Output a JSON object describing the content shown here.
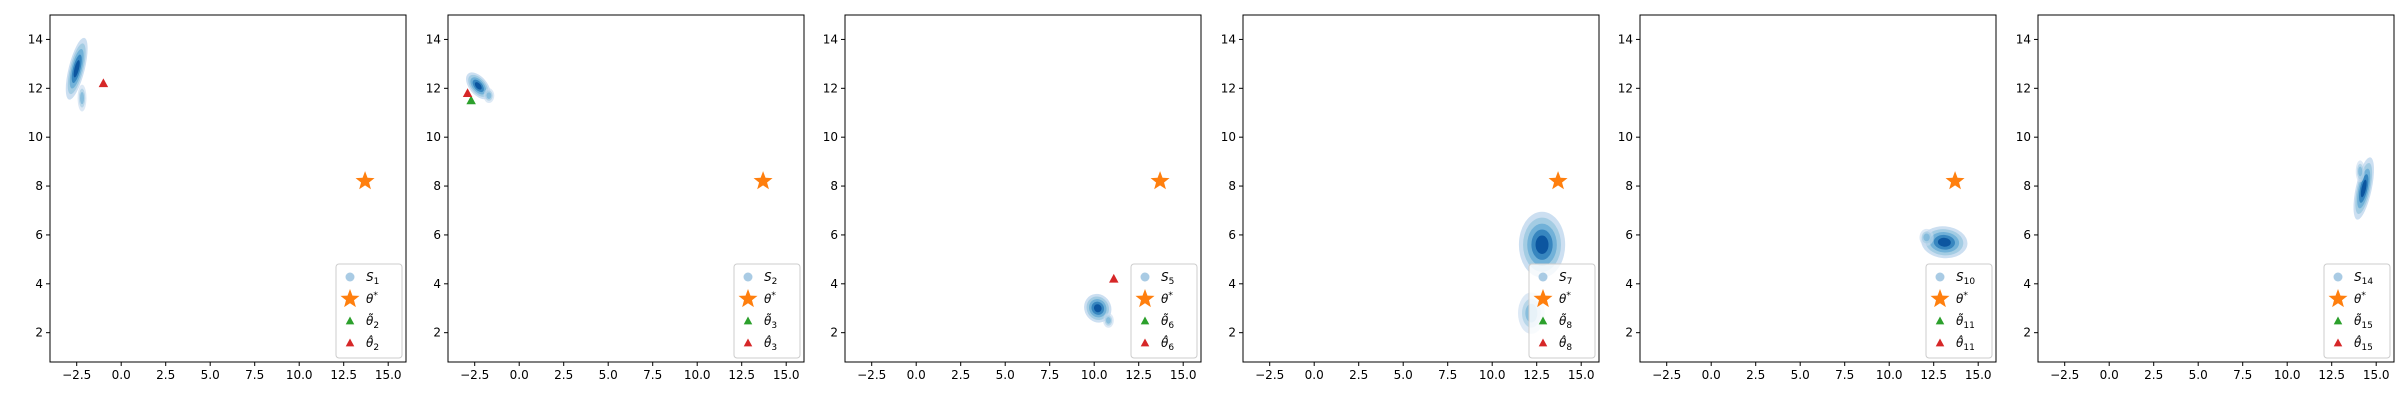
{
  "colors": {
    "star": "#ff7f0e",
    "green": "#2ca02c",
    "red": "#d62728",
    "kde": [
      "#c6dbef",
      "#9ecae1",
      "#6baed6",
      "#3182bd",
      "#08519c"
    ],
    "legend_s": "#a9cbe4"
  },
  "chart_data": [
    {
      "type": "scatter",
      "xlim": [
        -4.0,
        16.0
      ],
      "ylim": [
        0.8,
        15.0
      ],
      "xticks": [
        -2.5,
        0.0,
        2.5,
        5.0,
        7.5,
        10.0,
        12.5,
        15.0
      ],
      "yticks": [
        2,
        4,
        6,
        8,
        10,
        12,
        14
      ],
      "xtick_labels": [
        "−2.5",
        "0.0",
        "2.5",
        "5.0",
        "7.5",
        "10.0",
        "12.5",
        "15.0"
      ],
      "ytick_labels": [
        "2",
        "4",
        "6",
        "8",
        "10",
        "12",
        "14"
      ],
      "legend": {
        "position": "lower right",
        "entries": [
          {
            "marker": "dot",
            "base": "S",
            "sub": "1"
          },
          {
            "marker": "star",
            "base": "θ",
            "sup": "*"
          },
          {
            "marker": "green-triangle",
            "base": "θ̃",
            "sub": "2"
          },
          {
            "marker": "red-triangle",
            "base": "θ̂",
            "sub": "2"
          }
        ]
      },
      "star": {
        "x": 13.7,
        "y": 8.2
      },
      "green_triangle": null,
      "red_triangle": {
        "x": -1.0,
        "y": 12.2
      },
      "density": [
        {
          "x": -2.5,
          "y": 12.8,
          "sx": 0.45,
          "sy": 1.3,
          "angle": 14
        },
        {
          "x": -2.2,
          "y": 11.6,
          "sx": 0.25,
          "sy": 0.55,
          "angle": 0
        }
      ]
    },
    {
      "type": "scatter",
      "xlim": [
        -4.0,
        16.0
      ],
      "ylim": [
        0.8,
        15.0
      ],
      "xticks": [
        -2.5,
        0.0,
        2.5,
        5.0,
        7.5,
        10.0,
        12.5,
        15.0
      ],
      "yticks": [
        2,
        4,
        6,
        8,
        10,
        12,
        14
      ],
      "xtick_labels": [
        "−2.5",
        "0.0",
        "2.5",
        "5.0",
        "7.5",
        "10.0",
        "12.5",
        "15.0"
      ],
      "ytick_labels": [
        "2",
        "4",
        "6",
        "8",
        "10",
        "12",
        "14"
      ],
      "legend": {
        "position": "lower right",
        "entries": [
          {
            "marker": "dot",
            "base": "S",
            "sub": "2"
          },
          {
            "marker": "star",
            "base": "θ",
            "sup": "*"
          },
          {
            "marker": "green-triangle",
            "base": "θ̃",
            "sub": "3"
          },
          {
            "marker": "red-triangle",
            "base": "θ̂",
            "sub": "3"
          }
        ]
      },
      "star": {
        "x": 13.7,
        "y": 8.2
      },
      "green_triangle": {
        "x": -2.7,
        "y": 11.5
      },
      "red_triangle": {
        "x": -2.9,
        "y": 11.8
      },
      "density": [
        {
          "x": -2.3,
          "y": 12.1,
          "sx": 0.5,
          "sy": 0.65,
          "angle": -40
        },
        {
          "x": -1.7,
          "y": 11.7,
          "sx": 0.3,
          "sy": 0.3,
          "angle": 0
        }
      ]
    },
    {
      "type": "scatter",
      "xlim": [
        -4.0,
        16.0
      ],
      "ylim": [
        0.8,
        15.0
      ],
      "xticks": [
        -2.5,
        0.0,
        2.5,
        5.0,
        7.5,
        10.0,
        12.5,
        15.0
      ],
      "yticks": [
        2,
        4,
        6,
        8,
        10,
        12,
        14
      ],
      "xtick_labels": [
        "−2.5",
        "0.0",
        "2.5",
        "5.0",
        "7.5",
        "10.0",
        "12.5",
        "15.0"
      ],
      "ytick_labels": [
        "2",
        "4",
        "6",
        "8",
        "10",
        "12",
        "14"
      ],
      "legend": {
        "position": "lower right",
        "entries": [
          {
            "marker": "dot",
            "base": "S",
            "sub": "5"
          },
          {
            "marker": "star",
            "base": "θ",
            "sup": "*"
          },
          {
            "marker": "green-triangle",
            "base": "θ̃",
            "sub": "6"
          },
          {
            "marker": "red-triangle",
            "base": "θ̂",
            "sub": "6"
          }
        ]
      },
      "star": {
        "x": 13.7,
        "y": 8.2
      },
      "green_triangle": null,
      "red_triangle": {
        "x": 11.1,
        "y": 4.2
      },
      "density": [
        {
          "x": 10.2,
          "y": 3.0,
          "sx": 0.75,
          "sy": 0.6,
          "angle": -30
        },
        {
          "x": 10.8,
          "y": 2.5,
          "sx": 0.3,
          "sy": 0.3,
          "angle": 0
        }
      ]
    },
    {
      "type": "scatter",
      "xlim": [
        -4.0,
        16.0
      ],
      "ylim": [
        0.8,
        15.0
      ],
      "xticks": [
        -2.5,
        0.0,
        2.5,
        5.0,
        7.5,
        10.0,
        12.5,
        15.0
      ],
      "yticks": [
        2,
        4,
        6,
        8,
        10,
        12,
        14
      ],
      "xtick_labels": [
        "−2.5",
        "0.0",
        "2.5",
        "5.0",
        "7.5",
        "10.0",
        "12.5",
        "15.0"
      ],
      "ytick_labels": [
        "2",
        "4",
        "6",
        "8",
        "10",
        "12",
        "14"
      ],
      "legend": {
        "position": "lower right",
        "entries": [
          {
            "marker": "dot",
            "base": "S",
            "sub": "7"
          },
          {
            "marker": "star",
            "base": "θ",
            "sup": "*"
          },
          {
            "marker": "green-triangle",
            "base": "θ̃",
            "sub": "8"
          },
          {
            "marker": "red-triangle",
            "base": "θ̂",
            "sub": "8"
          }
        ]
      },
      "star": {
        "x": 13.7,
        "y": 8.2
      },
      "green_triangle": null,
      "red_triangle": null,
      "density": [
        {
          "x": 12.8,
          "y": 5.6,
          "sx": 1.3,
          "sy": 1.35,
          "angle": 0
        },
        {
          "x": 12.2,
          "y": 2.8,
          "sx": 0.75,
          "sy": 0.85,
          "angle": 0
        }
      ]
    },
    {
      "type": "scatter",
      "xlim": [
        -4.0,
        16.0
      ],
      "ylim": [
        0.8,
        15.0
      ],
      "xticks": [
        -2.5,
        0.0,
        2.5,
        5.0,
        7.5,
        10.0,
        12.5,
        15.0
      ],
      "yticks": [
        2,
        4,
        6,
        8,
        10,
        12,
        14
      ],
      "xtick_labels": [
        "−2.5",
        "0.0",
        "2.5",
        "5.0",
        "7.5",
        "10.0",
        "12.5",
        "15.0"
      ],
      "ytick_labels": [
        "2",
        "4",
        "6",
        "8",
        "10",
        "12",
        "14"
      ],
      "legend": {
        "position": "lower right",
        "entries": [
          {
            "marker": "dot",
            "base": "S",
            "sub": "10"
          },
          {
            "marker": "star",
            "base": "θ",
            "sup": "*"
          },
          {
            "marker": "green-triangle",
            "base": "θ̃",
            "sub": "11"
          },
          {
            "marker": "red-triangle",
            "base": "θ̂",
            "sub": "11"
          }
        ]
      },
      "star": {
        "x": 13.7,
        "y": 8.2
      },
      "green_triangle": null,
      "red_triangle": null,
      "density": [
        {
          "x": 13.1,
          "y": 5.7,
          "sx": 1.3,
          "sy": 0.65,
          "angle": 5
        },
        {
          "x": 12.1,
          "y": 5.9,
          "sx": 0.4,
          "sy": 0.35,
          "angle": 0
        }
      ]
    },
    {
      "type": "scatter",
      "xlim": [
        -4.0,
        16.0
      ],
      "ylim": [
        0.8,
        15.0
      ],
      "xticks": [
        -2.5,
        0.0,
        2.5,
        5.0,
        7.5,
        10.0,
        12.5,
        15.0
      ],
      "yticks": [
        2,
        4,
        6,
        8,
        10,
        12,
        14
      ],
      "xtick_labels": [
        "−2.5",
        "0.0",
        "2.5",
        "5.0",
        "7.5",
        "10.0",
        "12.5",
        "15.0"
      ],
      "ytick_labels": [
        "2",
        "4",
        "6",
        "8",
        "10",
        "12",
        "14"
      ],
      "legend": {
        "position": "lower right",
        "entries": [
          {
            "marker": "dot",
            "base": "S",
            "sub": "14"
          },
          {
            "marker": "star",
            "base": "θ",
            "sup": "*"
          },
          {
            "marker": "green-triangle",
            "base": "θ̃",
            "sub": "15"
          },
          {
            "marker": "red-triangle",
            "base": "θ̂",
            "sub": "15"
          }
        ]
      },
      "star": null,
      "green_triangle": null,
      "red_triangle": null,
      "density": [
        {
          "x": 14.3,
          "y": 7.9,
          "sx": 0.45,
          "sy": 1.3,
          "angle": 12
        },
        {
          "x": 14.1,
          "y": 8.6,
          "sx": 0.25,
          "sy": 0.45,
          "angle": 0
        }
      ]
    }
  ]
}
